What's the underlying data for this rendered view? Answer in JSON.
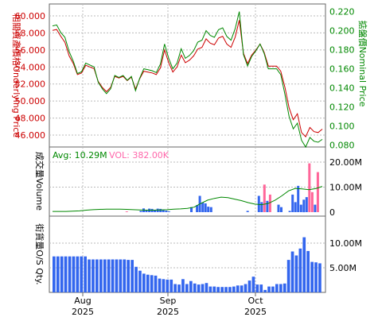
{
  "chart_data": [
    {
      "type": "line",
      "title": "",
      "ylabel_left": "相關資產價格Underlying Price",
      "ylabel_right": "掂盤價Nominal Price",
      "yticks_left": [
        "46.000",
        "48.000",
        "50.000",
        "52.000",
        "54.000",
        "56.000",
        "58.000",
        "60.000"
      ],
      "ylim_left": [
        44.6,
        61.4
      ],
      "yticks_right": [
        "0.080",
        "0.100",
        "0.120",
        "0.140",
        "0.160",
        "0.180",
        "0.200",
        "0.220"
      ],
      "ylim_right": [
        0.078,
        0.228
      ],
      "grid": true,
      "colors": {
        "underlying": "#cc0000",
        "nominal": "#008800"
      },
      "series": [
        {
          "key": "underlying",
          "values": [
            58.3,
            58.4,
            57.6,
            56.9,
            55.3,
            54.4,
            53.1,
            53.3,
            54.2,
            54.0,
            53.8,
            52.3,
            51.6,
            51.1,
            51.6,
            52.9,
            52.7,
            52.9,
            52.4,
            52.8,
            51.4,
            52.6,
            53.5,
            53.4,
            53.3,
            53.1,
            53.9,
            56.0,
            54.5,
            53.4,
            54.0,
            55.4,
            54.5,
            54.8,
            55.3,
            56.1,
            56.3,
            57.3,
            56.8,
            56.6,
            57.4,
            57.6,
            56.7,
            56.3,
            57.5,
            59.5,
            55.6,
            54.4,
            55.4,
            56.0,
            56.7,
            55.7,
            54.1,
            54.1,
            54.1,
            53.5,
            51.6,
            49.2,
            47.8,
            48.5,
            46.3,
            45.8,
            46.9,
            46.4,
            46.3,
            46.7
          ]
        },
        {
          "key": "nominal",
          "values": [
            0.205,
            0.206,
            0.198,
            0.193,
            0.178,
            0.168,
            0.155,
            0.157,
            0.166,
            0.164,
            0.162,
            0.146,
            0.139,
            0.134,
            0.139,
            0.153,
            0.151,
            0.153,
            0.148,
            0.152,
            0.137,
            0.15,
            0.16,
            0.159,
            0.158,
            0.156,
            0.165,
            0.186,
            0.171,
            0.16,
            0.166,
            0.181,
            0.171,
            0.174,
            0.179,
            0.188,
            0.19,
            0.2,
            0.195,
            0.193,
            0.201,
            0.203,
            0.194,
            0.19,
            0.202,
            0.22,
            0.175,
            0.163,
            0.173,
            0.179,
            0.186,
            0.176,
            0.16,
            0.16,
            0.16,
            0.154,
            0.133,
            0.11,
            0.097,
            0.103,
            0.085,
            0.078,
            0.088,
            0.084,
            0.083,
            0.086
          ]
        }
      ]
    },
    {
      "type": "bar",
      "ylabel": "成交量Volume",
      "avg_label": "Avg: 10.29M",
      "vol_label": "VOL: 382.00K",
      "yticks": [
        "0",
        "10.00M",
        "20.00M"
      ],
      "ylim": [
        0,
        20.5
      ],
      "grid": true,
      "colors": {
        "avg": "#008800",
        "vol": "#ff66aa",
        "bar_blue": "#3366ee",
        "bar_pink": "#ff6699",
        "avg_line": "#008800"
      },
      "bars": [
        {
          "i": 26,
          "value": 0.3,
          "color": "pink"
        },
        {
          "i": 31,
          "value": 0.5,
          "color": "blue"
        },
        {
          "i": 32,
          "value": 1.5,
          "color": "blue"
        },
        {
          "i": 33,
          "value": 0.8,
          "color": "blue"
        },
        {
          "i": 34,
          "value": 1.4,
          "color": "blue"
        },
        {
          "i": 35,
          "value": 1.3,
          "color": "blue"
        },
        {
          "i": 36,
          "value": 0.9,
          "color": "blue"
        },
        {
          "i": 37,
          "value": 1.4,
          "color": "blue"
        },
        {
          "i": 38,
          "value": 1.3,
          "color": "blue"
        },
        {
          "i": 39,
          "value": 1.0,
          "color": "blue"
        },
        {
          "i": 40,
          "value": 0.6,
          "color": "blue"
        },
        {
          "i": 41,
          "value": 0.3,
          "color": "blue"
        },
        {
          "i": 49,
          "value": 2.0,
          "color": "blue"
        },
        {
          "i": 51,
          "value": 2.8,
          "color": "blue"
        },
        {
          "i": 52,
          "value": 6.5,
          "color": "blue"
        },
        {
          "i": 53,
          "value": 3.8,
          "color": "blue"
        },
        {
          "i": 54,
          "value": 3.5,
          "color": "blue"
        },
        {
          "i": 55,
          "value": 2.2,
          "color": "blue"
        },
        {
          "i": 56,
          "value": 2.0,
          "color": "blue"
        },
        {
          "i": 69,
          "value": 0.5,
          "color": "blue"
        },
        {
          "i": 73,
          "value": 6.5,
          "color": "blue"
        },
        {
          "i": 74,
          "value": 4.0,
          "color": "blue"
        },
        {
          "i": 75,
          "value": 11.0,
          "color": "pink"
        },
        {
          "i": 76,
          "value": 4.5,
          "color": "blue"
        },
        {
          "i": 77,
          "value": 7.0,
          "color": "pink"
        },
        {
          "i": 80,
          "value": 3.0,
          "color": "blue"
        },
        {
          "i": 81,
          "value": 2.0,
          "color": "blue"
        },
        {
          "i": 84,
          "value": 0.5,
          "color": "blue"
        },
        {
          "i": 85,
          "value": 7.0,
          "color": "blue"
        },
        {
          "i": 86,
          "value": 4.0,
          "color": "blue"
        },
        {
          "i": 87,
          "value": 10.5,
          "color": "blue"
        },
        {
          "i": 88,
          "value": 3.0,
          "color": "blue"
        },
        {
          "i": 89,
          "value": 5.0,
          "color": "blue"
        },
        {
          "i": 90,
          "value": 6.0,
          "color": "blue"
        },
        {
          "i": 91,
          "value": 19.5,
          "color": "pink"
        },
        {
          "i": 92,
          "value": 8.0,
          "color": "pink"
        },
        {
          "i": 93,
          "value": 3.0,
          "color": "blue"
        },
        {
          "i": 94,
          "value": 16.0,
          "color": "pink"
        }
      ],
      "avg_line": [
        0.3,
        0.3,
        0.3,
        0.4,
        0.5,
        0.8,
        1.0,
        1.1,
        1.2,
        1.2,
        1.2,
        1.1,
        1.0,
        0.9,
        0.8,
        0.8,
        0.9,
        1.0,
        1.2,
        1.3,
        1.5,
        2.0,
        3.5,
        4.8,
        5.5,
        6.0,
        5.8,
        5.2,
        4.6,
        3.8,
        3.2,
        3.0,
        3.5,
        4.8,
        6.5,
        8.5,
        9.5,
        9.3,
        9.0,
        9.4,
        10.3
      ]
    },
    {
      "type": "bar",
      "ylabel": "街貨量O/S Qty.",
      "yticks": [
        "5.00M",
        "10.00M"
      ],
      "ylim": [
        0,
        12.7
      ],
      "grid": true,
      "xticks": [
        {
          "month": "Aug",
          "year": "2025"
        },
        {
          "month": "Sep",
          "year": "2025"
        },
        {
          "month": "Oct",
          "year": "2025"
        }
      ],
      "colors": {
        "bar": "#3366ee"
      },
      "values": [
        7.3,
        7.3,
        7.3,
        7.3,
        7.3,
        7.3,
        7.3,
        7.3,
        7.3,
        6.7,
        6.7,
        6.7,
        6.7,
        6.7,
        6.7,
        6.7,
        6.7,
        6.7,
        6.7,
        6.6,
        6.6,
        5.2,
        4.4,
        3.8,
        3.6,
        3.5,
        3.4,
        2.8,
        2.7,
        2.6,
        2.6,
        1.7,
        1.6,
        2.7,
        1.7,
        2.3,
        1.8,
        1.6,
        1.7,
        1.9,
        1.2,
        1.2,
        1.1,
        1.1,
        1.1,
        1.1,
        1.2,
        1.4,
        1.4,
        1.7,
        2.4,
        3.2,
        1.6,
        1.6,
        0.5,
        1.2,
        1.2,
        1.7,
        1.7,
        1.8,
        6.6,
        8.3,
        7.5,
        8.9,
        11.2,
        8.4,
        6.2,
        6.1,
        5.9
      ]
    }
  ]
}
